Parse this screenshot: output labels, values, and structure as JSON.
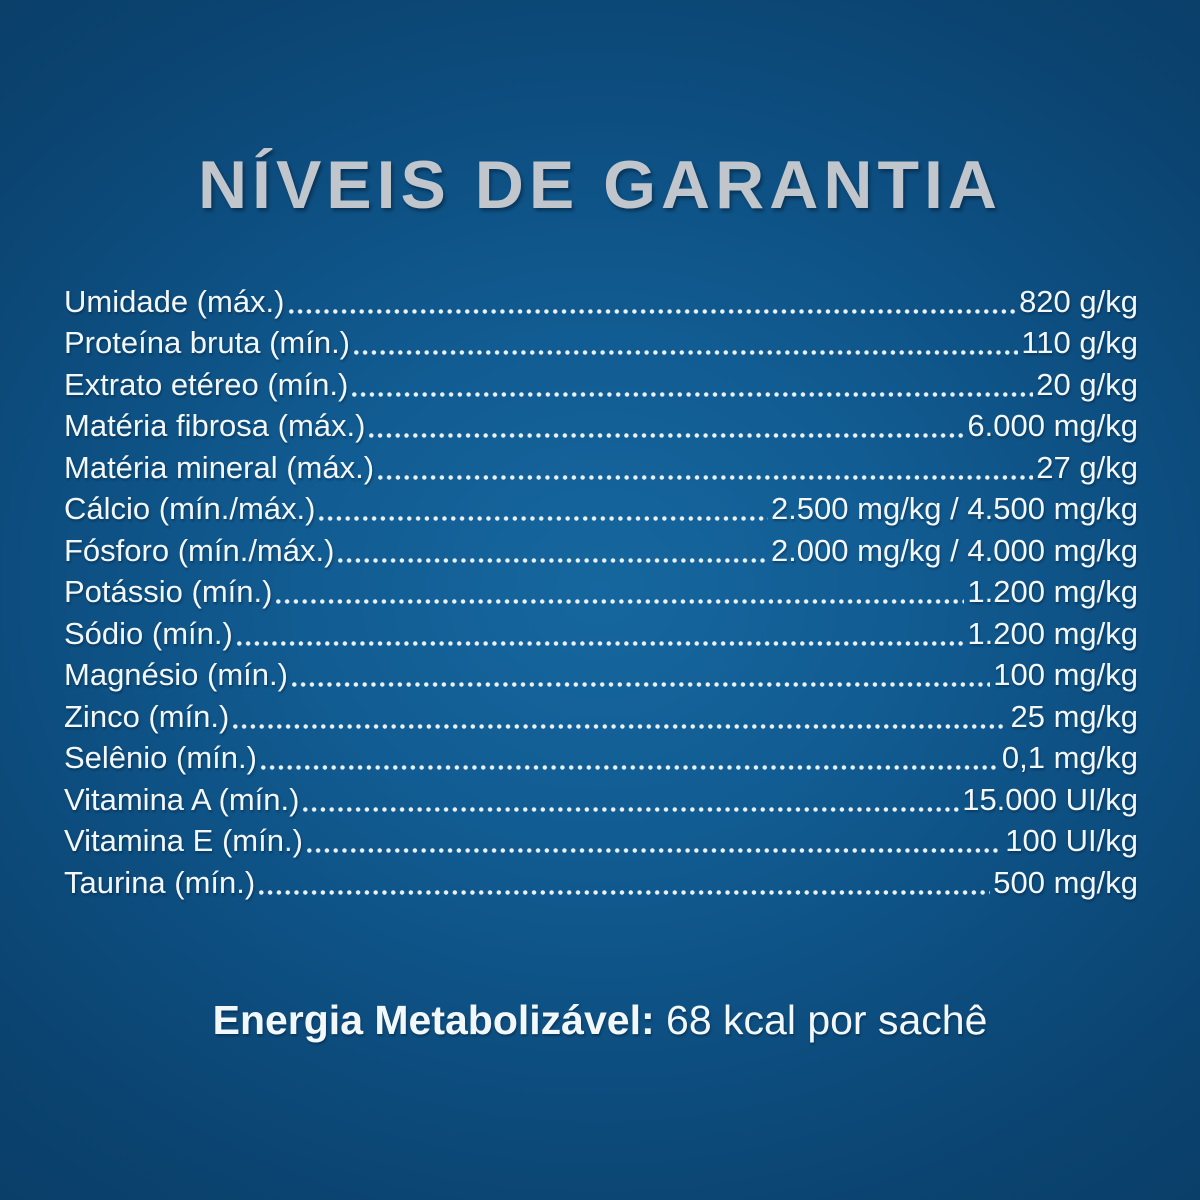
{
  "page": {
    "title": "NÍVEIS DE GARANTIA",
    "background_center_color": "#16679F",
    "background_edge_color": "#0A3F69",
    "title_color": "#C0C6CB",
    "text_color": "#F2F7FA"
  },
  "table": {
    "rows": [
      {
        "label": "Umidade (máx.)",
        "value": "820 g/kg"
      },
      {
        "label": "Proteína bruta (mín.)",
        "value": "110 g/kg"
      },
      {
        "label": "Extrato etéreo (mín.)",
        "value": "20 g/kg"
      },
      {
        "label": "Matéria fibrosa (máx.)",
        "value": "6.000 mg/kg"
      },
      {
        "label": "Matéria mineral (máx.)",
        "value": "27 g/kg"
      },
      {
        "label": "Cálcio (mín./máx.)",
        "value": "2.500 mg/kg / 4.500 mg/kg"
      },
      {
        "label": "Fósforo (mín./máx.)",
        "value": "2.000 mg/kg / 4.000 mg/kg"
      },
      {
        "label": "Potássio (mín.)",
        "value": "1.200 mg/kg"
      },
      {
        "label": "Sódio (mín.)",
        "value": "1.200 mg/kg"
      },
      {
        "label": "Magnésio (mín.)",
        "value": "100 mg/kg"
      },
      {
        "label": "Zinco (mín.)",
        "value": "25 mg/kg"
      },
      {
        "label": "Selênio (mín.)",
        "value": "0,1 mg/kg"
      },
      {
        "label": "Vitamina A (mín.)",
        "value": "15.000 UI/kg"
      },
      {
        "label": "Vitamina E (mín.)",
        "value": "100 UI/kg"
      },
      {
        "label": "Taurina (mín.)",
        "value": "500 mg/kg"
      }
    ]
  },
  "footer": {
    "energy_label": "Energia Metabolizável:",
    "energy_value": "68 kcal por sachê"
  }
}
